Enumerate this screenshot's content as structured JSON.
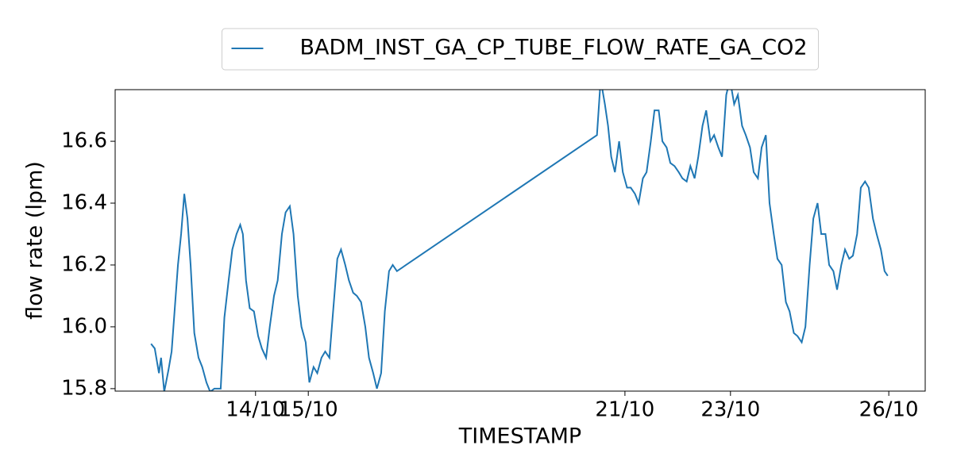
{
  "chart_data": {
    "type": "line",
    "xlabel": "TIMESTAMP",
    "ylabel": "flow rate (lpm)",
    "x": [
      12.02,
      12.09,
      12.17,
      12.21,
      12.27,
      12.35,
      12.41,
      12.47,
      12.53,
      12.59,
      12.65,
      12.71,
      12.77,
      12.84,
      12.92,
      12.99,
      13.07,
      13.14,
      13.22,
      13.34,
      13.41,
      13.49,
      13.56,
      13.64,
      13.71,
      13.76,
      13.82,
      13.89,
      13.97,
      14.05,
      14.12,
      14.2,
      14.27,
      14.35,
      14.42,
      14.5,
      14.57,
      14.65,
      14.72,
      14.8,
      14.87,
      14.95,
      15.02,
      15.1,
      15.17,
      15.25,
      15.32,
      15.4,
      15.47,
      15.55,
      15.62,
      15.7,
      15.77,
      15.85,
      15.92,
      16.0,
      16.08,
      16.15,
      16.23,
      16.3,
      16.38,
      16.45,
      16.53,
      16.6,
      16.68,
      20.47,
      20.54,
      20.62,
      20.68,
      20.74,
      20.81,
      20.89,
      20.96,
      21.04,
      21.11,
      21.19,
      21.26,
      21.34,
      21.41,
      21.49,
      21.56,
      21.64,
      21.71,
      21.79,
      21.86,
      21.94,
      22.02,
      22.09,
      22.17,
      22.24,
      22.32,
      22.39,
      22.47,
      22.54,
      22.62,
      22.69,
      22.77,
      22.84,
      22.92,
      22.99,
      23.07,
      23.14,
      23.22,
      23.29,
      23.37,
      23.44,
      23.52,
      23.59,
      23.67,
      23.74,
      23.82,
      23.89,
      23.97,
      24.05,
      24.12,
      24.2,
      24.27,
      24.35,
      24.42,
      24.5,
      24.57,
      24.65,
      24.72,
      24.8,
      24.87,
      24.95,
      25.02,
      25.1,
      25.17,
      25.25,
      25.32,
      25.4,
      25.47,
      25.55,
      25.62,
      25.7,
      25.77,
      25.85,
      25.92,
      25.98
    ],
    "series": [
      {
        "name": "BADM_INST_GA_CP_TUBE_FLOW_RATE_GA_CO2",
        "color": "#1f77b4",
        "values": [
          15.945,
          15.93,
          15.85,
          15.9,
          15.79,
          15.86,
          15.92,
          16.06,
          16.2,
          16.3,
          16.43,
          16.35,
          16.2,
          15.98,
          15.9,
          15.87,
          15.82,
          15.79,
          15.8,
          15.8,
          16.03,
          16.15,
          16.25,
          16.3,
          16.33,
          16.3,
          16.15,
          16.06,
          16.05,
          15.97,
          15.93,
          15.9,
          16.0,
          16.1,
          16.15,
          16.3,
          16.37,
          16.39,
          16.3,
          16.1,
          16.0,
          15.95,
          15.82,
          15.87,
          15.85,
          15.9,
          15.92,
          15.9,
          16.05,
          16.22,
          16.25,
          16.2,
          16.15,
          16.11,
          16.1,
          16.08,
          16.0,
          15.9,
          15.85,
          15.8,
          15.85,
          16.05,
          16.18,
          16.2,
          16.18,
          16.62,
          16.8,
          16.72,
          16.65,
          16.55,
          16.5,
          16.6,
          16.5,
          16.45,
          16.45,
          16.43,
          16.4,
          16.48,
          16.5,
          16.6,
          16.7,
          16.7,
          16.6,
          16.58,
          16.53,
          16.52,
          16.5,
          16.48,
          16.47,
          16.52,
          16.48,
          16.55,
          16.65,
          16.7,
          16.6,
          16.62,
          16.58,
          16.55,
          16.75,
          16.8,
          16.72,
          16.75,
          16.65,
          16.62,
          16.58,
          16.5,
          16.48,
          16.58,
          16.62,
          16.4,
          16.3,
          16.22,
          16.2,
          16.08,
          16.05,
          15.98,
          15.97,
          15.95,
          16.0,
          16.2,
          16.35,
          16.4,
          16.3,
          16.3,
          16.2,
          16.18,
          16.12,
          16.2,
          16.25,
          16.22,
          16.23,
          16.3,
          16.45,
          16.47,
          16.45,
          16.35,
          16.3,
          16.25,
          16.18,
          16.165
        ]
      }
    ],
    "xlim": [
      11.34,
      26.69
    ],
    "xticks": [
      {
        "value": 14,
        "label": "14/10"
      },
      {
        "value": 15,
        "label": "15/10"
      },
      {
        "value": 21,
        "label": "21/10"
      },
      {
        "value": 23,
        "label": "23/10"
      },
      {
        "value": 26,
        "label": "26/10"
      }
    ],
    "ylim": [
      15.792,
      16.767
    ],
    "yticks": [
      15.8,
      {
        "value": 16,
        "label": "16.0"
      },
      16.2,
      16.4,
      16.6
    ],
    "legend": "upper center",
    "grid": false
  }
}
